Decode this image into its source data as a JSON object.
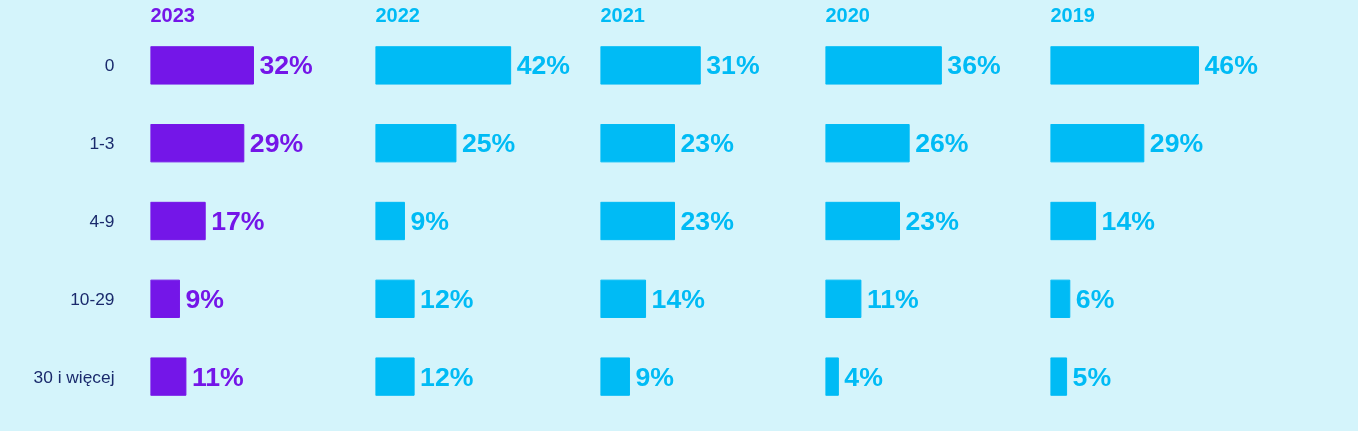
{
  "chart_data": [
    {
      "type": "bar",
      "orientation": "horizontal",
      "title": "2023",
      "categories": [
        "0",
        "1-3",
        "4-9",
        "10-29",
        "30 i więcej"
      ],
      "values": [
        32,
        29,
        17,
        9,
        11
      ],
      "color": "#7416e8",
      "value_labels": [
        "32%",
        "29%",
        "17%",
        "9%",
        "11%"
      ],
      "tick_labels": "y"
    },
    {
      "type": "bar",
      "orientation": "horizontal",
      "title": "2022",
      "categories": [
        null,
        null,
        null,
        null,
        null
      ],
      "values": [
        42,
        25,
        9,
        12,
        12
      ],
      "color": "#00bbf5",
      "value_labels": [
        "42%",
        "25%",
        "9%",
        "12%",
        "12%"
      ],
      "tick_labels": false
    },
    {
      "type": "bar",
      "orientation": "horizontal",
      "title": "2021",
      "categories": [
        null,
        null,
        null,
        null,
        null
      ],
      "values": [
        31,
        23,
        23,
        14,
        9
      ],
      "color": "#00bbf5",
      "value_labels": [
        "31%",
        "23%",
        "23%",
        "14%",
        "9%"
      ],
      "tick_labels": false
    },
    {
      "type": "bar",
      "orientation": "horizontal",
      "title": "2020",
      "categories": [
        null,
        null,
        null,
        null,
        null
      ],
      "values": [
        36,
        26,
        23,
        11,
        4
      ],
      "color": "#00bbf5",
      "value_labels": [
        "36%",
        "26%",
        "23%",
        "11%",
        "4%"
      ],
      "tick_labels": false
    },
    {
      "type": "bar",
      "orientation": "horizontal",
      "title": "2019",
      "categories": [
        null,
        null,
        null,
        null,
        null
      ],
      "values": [
        46,
        29,
        14,
        6,
        5
      ],
      "color": "#00bbf5",
      "value_labels": [
        "46%",
        "29%",
        "14%",
        "6%",
        "5%"
      ],
      "tick_labels": false
    }
  ]
}
